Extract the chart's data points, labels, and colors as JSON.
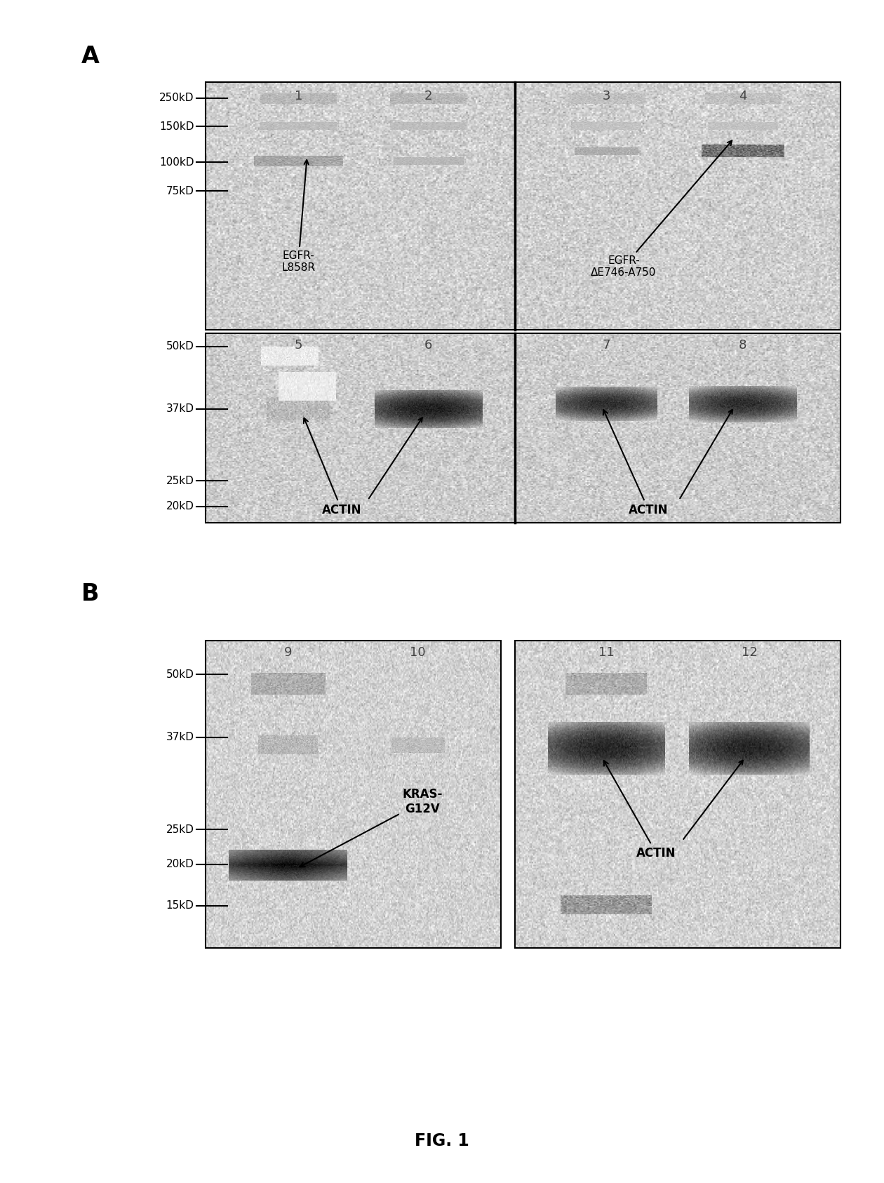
{
  "fig_width": 12.4,
  "fig_height": 16.66,
  "bg_color": "#ffffff",
  "panel_A_label": "A",
  "panel_B_label": "B",
  "fig_label": "FIG. 1",
  "markers_A_top": [
    "250kD",
    "150kD",
    "100kD",
    "75kD"
  ],
  "markers_A_bot": [
    "50kD",
    "37kD",
    "25kD",
    "20kD"
  ],
  "markers_B": [
    "50kD",
    "37kD",
    "25kD",
    "20kD",
    "15kD"
  ],
  "lanes_A_top": [
    "1",
    "2",
    "3",
    "4"
  ],
  "lanes_A_bot": [
    "5",
    "6",
    "7",
    "8"
  ],
  "lanes_B": [
    "9",
    "10",
    "11",
    "12"
  ],
  "ann_egfr1": "EGFR-\nL858R",
  "ann_egfr2": "EGFR-\nΔE746-A750",
  "ann_actin": "ACTIN",
  "ann_kras": "KRAS-\nG12V"
}
